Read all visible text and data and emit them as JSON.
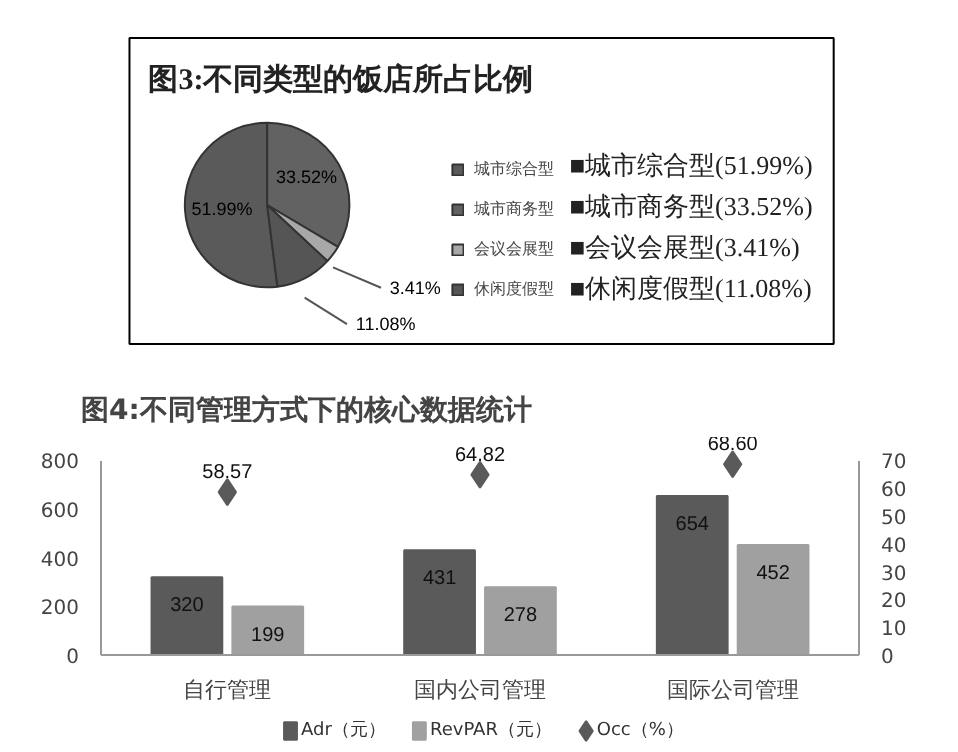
{
  "chart_data": [
    {
      "type": "pie",
      "title": "图3:不同类型的饭店所占比例",
      "categories": [
        "城市综合型",
        "城市商务型",
        "会议会展型",
        "休闲度假型"
      ],
      "values": [
        51.99,
        33.52,
        3.41,
        11.08
      ],
      "colors": [
        "#5a5a5a",
        "#626262",
        "#a8a8a8",
        "#555555"
      ],
      "value_labels": [
        "51.99%",
        "33.52%",
        "3.41%",
        "11.08%"
      ],
      "legend": "right",
      "annotations": [
        "■城市综合型(51.99%)",
        "■城市商务型(33.52%)",
        "■会议会展型(3.41%)",
        "■休闲度假型(11.08%)"
      ]
    },
    {
      "type": "bar",
      "title": "图4:不同管理方式下的核心数据统计",
      "categories": [
        "自行管理",
        "国内公司管理",
        "国际公司管理"
      ],
      "ylim": [
        0,
        800
      ],
      "yticks": [
        0,
        200,
        400,
        600,
        800
      ],
      "y2lim": [
        0,
        70
      ],
      "y2ticks": [
        0,
        10,
        20,
        30,
        40,
        50,
        60,
        70
      ],
      "grid": false,
      "legend": "bottom",
      "series": [
        {
          "name": "Adr（元）",
          "type": "bar",
          "color": "#5a5a5a",
          "values": [
            320,
            431,
            654
          ],
          "value_labels": [
            "320",
            "431",
            "654"
          ]
        },
        {
          "name": "RevPAR（元）",
          "type": "bar",
          "color": "#a0a0a0",
          "values": [
            199,
            278,
            452
          ],
          "value_labels": [
            "199",
            "278",
            "452"
          ]
        },
        {
          "name": "Occ（%）",
          "type": "scatter",
          "axis": "y2",
          "marker": "diamond",
          "color": "#5a5a5a",
          "values": [
            58.57,
            64.82,
            68.6
          ],
          "value_labels": [
            "58.57",
            "64.82",
            "68.60"
          ]
        }
      ]
    }
  ]
}
